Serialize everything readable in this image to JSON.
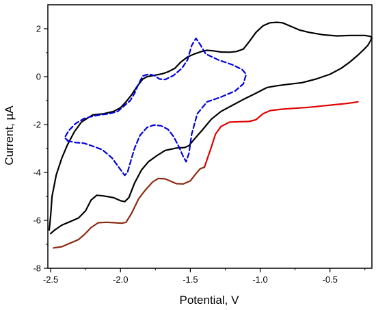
{
  "chart_data": {
    "type": "line",
    "title": "",
    "xlabel": "Potential, V",
    "ylabel": "Current, µA",
    "xlim": [
      -2.52,
      -0.2
    ],
    "ylim": [
      -8,
      3
    ],
    "x_ticks": [
      -2.5,
      -2.0,
      -1.5,
      -1.0,
      -0.5
    ],
    "x_tick_labels": [
      "-2.5",
      "-2.0",
      "-1.5",
      "-1.0",
      "-0.5"
    ],
    "y_ticks": [
      -8,
      -6,
      -4,
      -2,
      0,
      2
    ],
    "y_tick_labels": [
      "-8",
      "-6",
      "-4",
      "-2",
      "0",
      "2"
    ],
    "grid": false,
    "legend": "none",
    "series": [
      {
        "color": "#000000",
        "style": "solid",
        "points": [
          [
            -2.5,
            -6.55
          ],
          [
            -2.47,
            -6.4
          ],
          [
            -2.42,
            -6.2
          ],
          [
            -2.36,
            -6.05
          ],
          [
            -2.3,
            -5.9
          ],
          [
            -2.25,
            -5.6
          ],
          [
            -2.21,
            -5.15
          ],
          [
            -2.17,
            -4.95
          ],
          [
            -2.12,
            -4.98
          ],
          [
            -2.05,
            -5.05
          ],
          [
            -2.0,
            -5.18
          ],
          [
            -1.97,
            -5.22
          ],
          [
            -1.94,
            -5.05
          ],
          [
            -1.9,
            -4.45
          ],
          [
            -1.85,
            -3.9
          ],
          [
            -1.8,
            -3.55
          ],
          [
            -1.74,
            -3.3
          ],
          [
            -1.68,
            -3.08
          ],
          [
            -1.6,
            -2.98
          ],
          [
            -1.54,
            -2.96
          ],
          [
            -1.51,
            -2.88
          ],
          [
            -1.47,
            -2.6
          ],
          [
            -1.41,
            -2.2
          ],
          [
            -1.35,
            -1.78
          ],
          [
            -1.28,
            -1.45
          ],
          [
            -1.2,
            -1.2
          ],
          [
            -1.12,
            -0.95
          ],
          [
            -1.05,
            -0.75
          ],
          [
            -1.0,
            -0.6
          ],
          [
            -0.95,
            -0.45
          ],
          [
            -0.88,
            -0.38
          ],
          [
            -0.8,
            -0.32
          ],
          [
            -0.7,
            -0.25
          ],
          [
            -0.6,
            -0.1
          ],
          [
            -0.5,
            0.1
          ],
          [
            -0.42,
            0.35
          ],
          [
            -0.36,
            0.6
          ],
          [
            -0.3,
            0.9
          ],
          [
            -0.26,
            1.12
          ],
          [
            -0.23,
            1.3
          ],
          [
            -0.21,
            1.5
          ],
          [
            -0.2,
            1.62
          ],
          [
            -0.21,
            1.68
          ],
          [
            -0.25,
            1.72
          ],
          [
            -0.35,
            1.72
          ],
          [
            -0.45,
            1.7
          ],
          [
            -0.55,
            1.75
          ],
          [
            -0.65,
            1.85
          ],
          [
            -0.72,
            1.95
          ],
          [
            -0.78,
            2.1
          ],
          [
            -0.84,
            2.25
          ],
          [
            -0.88,
            2.27
          ],
          [
            -0.93,
            2.25
          ],
          [
            -0.98,
            2.12
          ],
          [
            -1.03,
            1.85
          ],
          [
            -1.08,
            1.45
          ],
          [
            -1.12,
            1.15
          ],
          [
            -1.17,
            1.05
          ],
          [
            -1.22,
            1.02
          ],
          [
            -1.28,
            1.03
          ],
          [
            -1.34,
            1.08
          ],
          [
            -1.38,
            1.1
          ],
          [
            -1.42,
            1.05
          ],
          [
            -1.47,
            0.95
          ],
          [
            -1.52,
            0.82
          ],
          [
            -1.57,
            0.6
          ],
          [
            -1.61,
            0.35
          ],
          [
            -1.66,
            0.2
          ],
          [
            -1.7,
            0.12
          ],
          [
            -1.76,
            0.05
          ],
          [
            -1.81,
            0.0
          ],
          [
            -1.84,
            -0.1
          ],
          [
            -1.88,
            -0.4
          ],
          [
            -1.92,
            -0.75
          ],
          [
            -1.96,
            -1.05
          ],
          [
            -2.0,
            -1.3
          ],
          [
            -2.05,
            -1.45
          ],
          [
            -2.12,
            -1.55
          ],
          [
            -2.2,
            -1.6
          ],
          [
            -2.28,
            -1.9
          ],
          [
            -2.33,
            -2.3
          ],
          [
            -2.38,
            -2.85
          ],
          [
            -2.42,
            -3.4
          ],
          [
            -2.46,
            -4.1
          ],
          [
            -2.49,
            -5.0
          ],
          [
            -2.5,
            -5.8
          ],
          [
            -2.51,
            -6.4
          ]
        ]
      },
      {
        "color": "#0000dd",
        "style": "dashed",
        "points": [
          [
            -2.38,
            -2.68
          ],
          [
            -2.32,
            -2.75
          ],
          [
            -2.26,
            -2.78
          ],
          [
            -2.2,
            -2.9
          ],
          [
            -2.13,
            -3.05
          ],
          [
            -2.06,
            -3.4
          ],
          [
            -2.01,
            -3.8
          ],
          [
            -1.97,
            -4.12
          ],
          [
            -1.95,
            -4.0
          ],
          [
            -1.93,
            -3.6
          ],
          [
            -1.9,
            -3.0
          ],
          [
            -1.86,
            -2.45
          ],
          [
            -1.81,
            -2.12
          ],
          [
            -1.76,
            -2.02
          ],
          [
            -1.71,
            -2.05
          ],
          [
            -1.66,
            -2.2
          ],
          [
            -1.62,
            -2.5
          ],
          [
            -1.58,
            -2.95
          ],
          [
            -1.55,
            -3.35
          ],
          [
            -1.53,
            -3.55
          ],
          [
            -1.51,
            -3.2
          ],
          [
            -1.49,
            -2.4
          ],
          [
            -1.45,
            -1.55
          ],
          [
            -1.38,
            -1.05
          ],
          [
            -1.28,
            -0.85
          ],
          [
            -1.18,
            -0.6
          ],
          [
            -1.12,
            -0.3
          ],
          [
            -1.1,
            0.1
          ],
          [
            -1.13,
            0.3
          ],
          [
            -1.2,
            0.5
          ],
          [
            -1.3,
            0.7
          ],
          [
            -1.39,
            0.95
          ],
          [
            -1.43,
            1.35
          ],
          [
            -1.46,
            1.6
          ],
          [
            -1.49,
            1.3
          ],
          [
            -1.52,
            0.7
          ],
          [
            -1.56,
            0.35
          ],
          [
            -1.62,
            0.05
          ],
          [
            -1.68,
            -0.12
          ],
          [
            -1.72,
            -0.1
          ],
          [
            -1.76,
            0.05
          ],
          [
            -1.8,
            0.1
          ],
          [
            -1.84,
            0.03
          ],
          [
            -1.87,
            -0.3
          ],
          [
            -1.9,
            -0.7
          ],
          [
            -1.93,
            -1.0
          ],
          [
            -1.97,
            -1.2
          ],
          [
            -2.02,
            -1.45
          ],
          [
            -2.08,
            -1.55
          ],
          [
            -2.15,
            -1.6
          ],
          [
            -2.2,
            -1.65
          ],
          [
            -2.26,
            -1.75
          ],
          [
            -2.32,
            -1.95
          ],
          [
            -2.37,
            -2.25
          ],
          [
            -2.4,
            -2.55
          ],
          [
            -2.37,
            -2.7
          ]
        ]
      },
      {
        "color": "#e00000",
        "style": "solid",
        "points": [
          [
            -1.4,
            -3.8
          ],
          [
            -1.35,
            -2.95
          ],
          [
            -1.32,
            -2.4
          ],
          [
            -1.28,
            -2.08
          ],
          [
            -1.22,
            -1.9
          ],
          [
            -1.14,
            -1.88
          ],
          [
            -1.08,
            -1.87
          ],
          [
            -1.03,
            -1.8
          ],
          [
            -0.98,
            -1.55
          ],
          [
            -0.93,
            -1.42
          ],
          [
            -0.85,
            -1.36
          ],
          [
            -0.75,
            -1.32
          ],
          [
            -0.65,
            -1.28
          ],
          [
            -0.55,
            -1.22
          ],
          [
            -0.45,
            -1.16
          ],
          [
            -0.38,
            -1.12
          ],
          [
            -0.33,
            -1.08
          ],
          [
            -0.3,
            -1.05
          ]
        ]
      },
      {
        "color": "#8b2a10",
        "style": "solid",
        "points": [
          [
            -2.48,
            -7.15
          ],
          [
            -2.42,
            -7.1
          ],
          [
            -2.36,
            -6.95
          ],
          [
            -2.3,
            -6.8
          ],
          [
            -2.26,
            -6.6
          ],
          [
            -2.21,
            -6.3
          ],
          [
            -2.16,
            -6.1
          ],
          [
            -2.1,
            -6.08
          ],
          [
            -2.04,
            -6.1
          ],
          [
            -1.99,
            -6.12
          ],
          [
            -1.96,
            -6.08
          ],
          [
            -1.92,
            -5.7
          ],
          [
            -1.87,
            -5.1
          ],
          [
            -1.82,
            -4.72
          ],
          [
            -1.77,
            -4.4
          ],
          [
            -1.73,
            -4.25
          ],
          [
            -1.68,
            -4.27
          ],
          [
            -1.64,
            -4.37
          ],
          [
            -1.6,
            -4.47
          ],
          [
            -1.55,
            -4.48
          ],
          [
            -1.5,
            -4.35
          ],
          [
            -1.46,
            -4.05
          ],
          [
            -1.43,
            -3.85
          ],
          [
            -1.4,
            -3.78
          ]
        ]
      }
    ]
  }
}
